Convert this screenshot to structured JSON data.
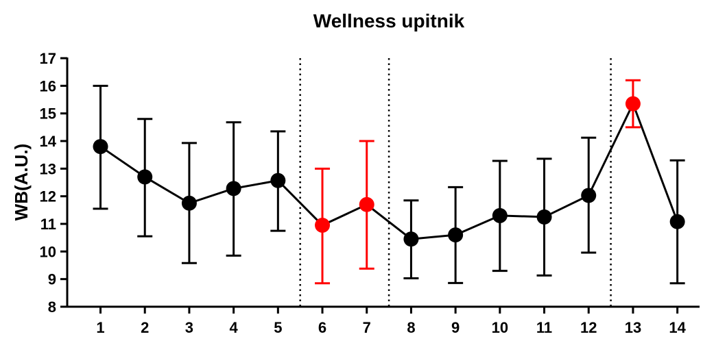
{
  "chart_data": {
    "type": "line",
    "title": "Wellness upitnik",
    "xlabel": "",
    "ylabel": "WB(A.U.)",
    "xlim": [
      0.25,
      14.5
    ],
    "ylim": [
      8,
      17
    ],
    "x_ticks": [
      "1",
      "2",
      "3",
      "4",
      "5",
      "6",
      "7",
      "8",
      "9",
      "10",
      "11",
      "12",
      "13",
      "14"
    ],
    "y_ticks": [
      "8",
      "9",
      "10",
      "11",
      "12",
      "13",
      "14",
      "15",
      "16",
      "17"
    ],
    "grid": false,
    "legend": "none",
    "series": [
      {
        "x": [
          1,
          2,
          3,
          4,
          5,
          6,
          7,
          8,
          9,
          10,
          11,
          12,
          13,
          14
        ],
        "values": [
          13.8,
          12.7,
          11.75,
          12.28,
          12.57,
          10.95,
          11.7,
          10.45,
          10.6,
          11.3,
          11.25,
          12.03,
          15.35,
          11.08
        ],
        "error_low": [
          11.55,
          10.55,
          9.58,
          9.85,
          10.75,
          8.85,
          9.38,
          9.03,
          8.86,
          9.3,
          9.13,
          9.96,
          14.5,
          8.85
        ],
        "error_high": [
          16.0,
          14.8,
          13.93,
          14.68,
          14.35,
          13.0,
          14.0,
          11.85,
          12.33,
          13.28,
          13.36,
          14.12,
          16.2,
          13.3
        ],
        "point_colors": [
          "#000000",
          "#000000",
          "#000000",
          "#000000",
          "#000000",
          "#ff0000",
          "#ff0000",
          "#000000",
          "#000000",
          "#000000",
          "#000000",
          "#000000",
          "#ff0000",
          "#000000"
        ]
      }
    ],
    "vertical_dotted_lines_x": [
      5.5,
      7.5,
      12.5
    ],
    "line_color": "#000000"
  }
}
